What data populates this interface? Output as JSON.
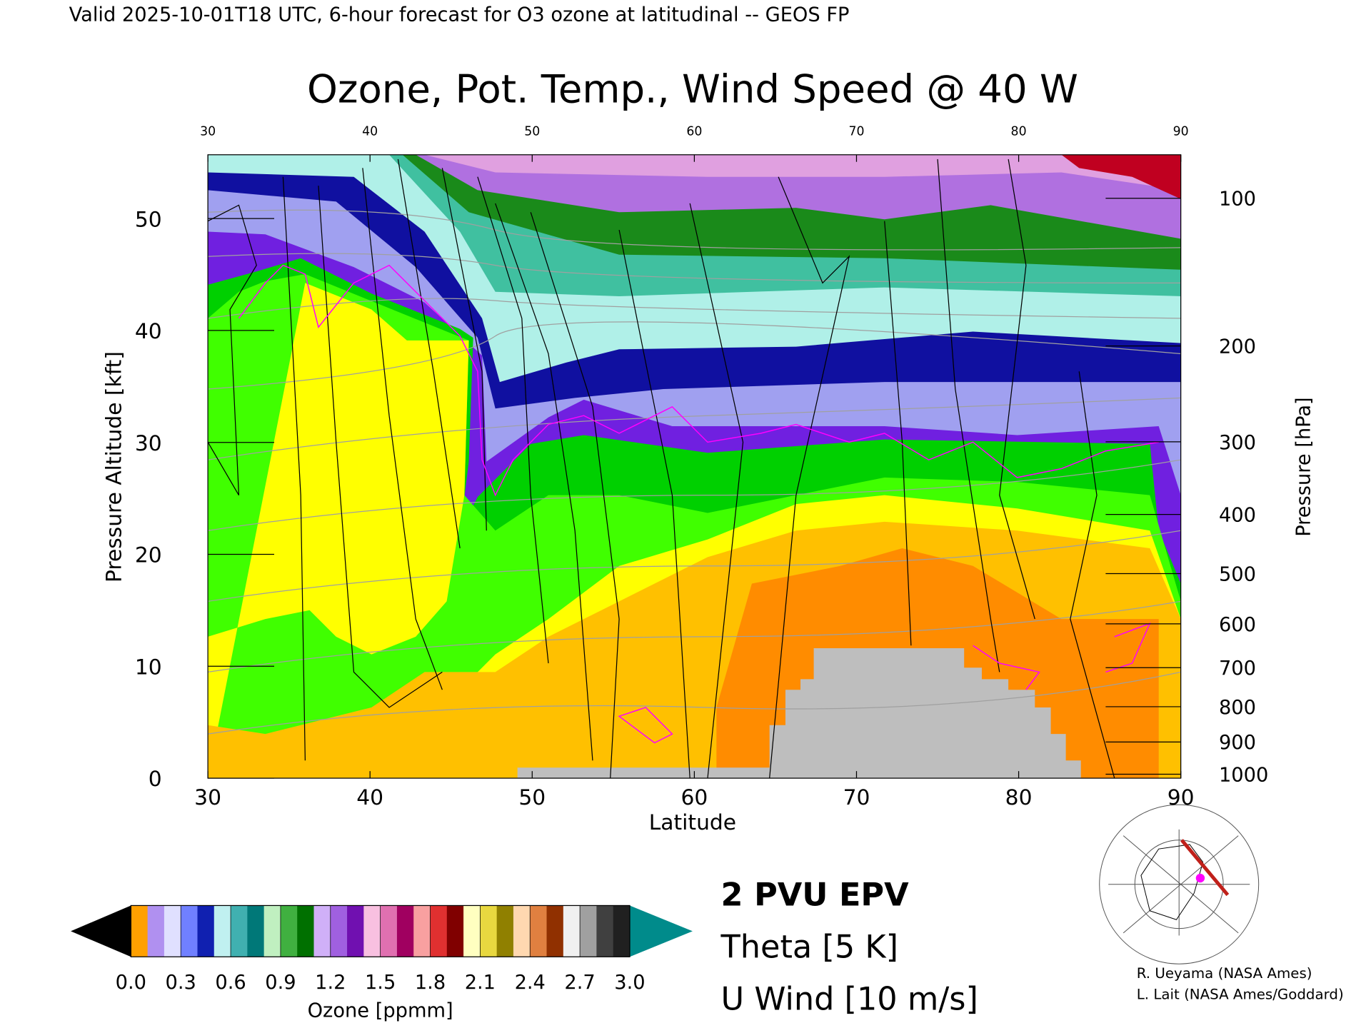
{
  "header": "Valid 2025-10-01T18 UTC, 6-hour forecast for O3 ozone at latitudinal -- GEOS FP",
  "chart_data": {
    "type": "contour",
    "title": "Ozone, Pot. Temp., Wind Speed @ 40 W",
    "x_label": "Latitude",
    "y_label": "Pressure Altitude [kft]",
    "y2_label": "Pressure [hPa]",
    "xlim": [
      30,
      90
    ],
    "xticks": [
      30,
      40,
      50,
      60,
      70,
      80,
      90
    ],
    "ylim": [
      0,
      55.7
    ],
    "yticks": [
      0,
      10,
      20,
      30,
      40,
      50
    ],
    "y2lim": [
      1013,
      80
    ],
    "y2ticks": [
      100,
      200,
      300,
      400,
      500,
      600,
      700,
      800,
      900,
      1000
    ],
    "colorbar": {
      "label": "Ozone [ppmm]",
      "lim": [
        0,
        3
      ],
      "ticks": [
        {
          "value": 0,
          "label": "0.0"
        },
        0.3,
        0.6,
        0.9,
        1.2,
        1.5,
        1.8,
        2.1,
        2.4,
        2.7,
        {
          "value": 3,
          "label": "3.0"
        }
      ],
      "colors": [
        "#ffa000",
        "#b090f0",
        "#e0e0ff",
        "#7080ff",
        "#1020b0",
        "#c0f0f0",
        "#40b0b0",
        "#007878",
        "#c0f0c0",
        "#40b040",
        "#007000",
        "#d0b0f8",
        "#a060e0",
        "#7010b0",
        "#f8c0e0",
        "#e070b0",
        "#a00060",
        "#f8a0a0",
        "#e03030",
        "#800000",
        "#ffffc0",
        "#e8d840",
        "#908000",
        "#ffd8b0",
        "#e08040",
        "#903000",
        "#f0f0f0",
        "#a0a0a0",
        "#404040",
        "#202020"
      ],
      "under_color": "#000000",
      "over_color": "#008b8b"
    },
    "overlays": [
      {
        "name": "2 PVU EPV",
        "color": "#ff00ff"
      },
      {
        "name": "Theta [5 K]",
        "color": "#b4b4b4"
      },
      {
        "name": "U Wind [10 m/s]",
        "color": "#000000"
      }
    ]
  },
  "credits": [
    "R. Ueyama (NASA Ames)",
    "L. Lait (NASA Ames/Goddard)"
  ]
}
